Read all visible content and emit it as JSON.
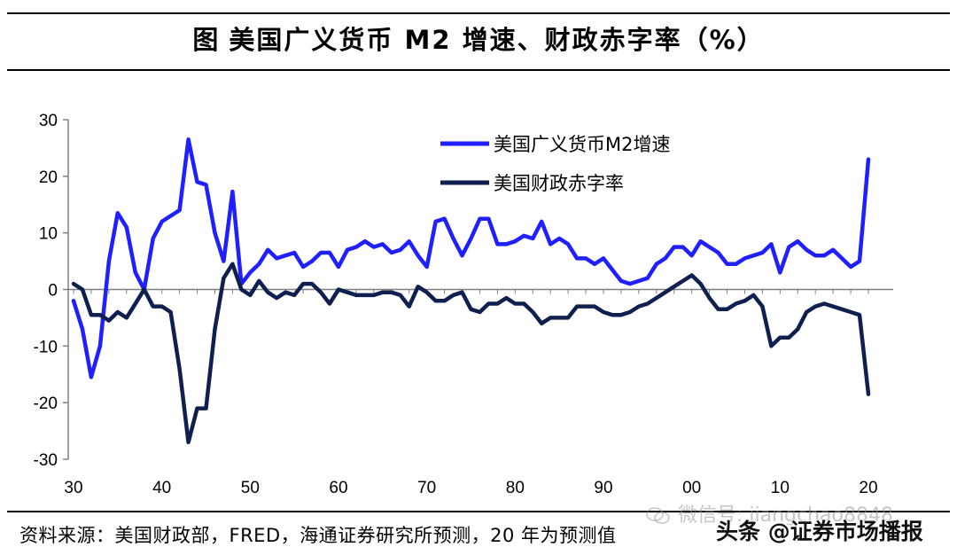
{
  "header": {
    "fig_label": "图",
    "title": "美国广义货币 M2 增速、财政赤字率（%）"
  },
  "footer": {
    "source": "资料来源：美国财政部，FRED，海通证券研究所预测，20 年为预测值"
  },
  "watermark": {
    "wechat": "微信号: jiangchao8848",
    "brand": "头条 @证券市场播报",
    "icon": "wechat-icon"
  },
  "colors": {
    "m2": "#1f1fff",
    "deficit": "#0f1f4f",
    "axis": "#7f7f7f"
  },
  "chart_data": {
    "type": "line",
    "title": "美国广义货币 M2 增速、财政赤字率（%）",
    "xlabel": "",
    "ylabel": "",
    "xlim": [
      1930,
      2020
    ],
    "ylim": [
      -30,
      30
    ],
    "x_tick_labels": [
      "30",
      "40",
      "50",
      "60",
      "70",
      "80",
      "90",
      "00",
      "10",
      "20"
    ],
    "x_ticks": [
      1930,
      1940,
      1950,
      1960,
      1970,
      1980,
      1990,
      2000,
      2010,
      2020
    ],
    "y_ticks": [
      30,
      20,
      10,
      0,
      -10,
      -20,
      -30
    ],
    "grid": false,
    "legend_position": "top-right",
    "series": [
      {
        "name": "美国广义货币M2增速",
        "color": "#1f1fff",
        "points": [
          [
            1930,
            -2
          ],
          [
            1931,
            -7
          ],
          [
            1932,
            -15.5
          ],
          [
            1933,
            -10
          ],
          [
            1934,
            5
          ],
          [
            1935,
            13.5
          ],
          [
            1936,
            11
          ],
          [
            1937,
            3
          ],
          [
            1938,
            0
          ],
          [
            1939,
            9
          ],
          [
            1940,
            12
          ],
          [
            1941,
            13
          ],
          [
            1942,
            14
          ],
          [
            1943,
            26.5
          ],
          [
            1944,
            19
          ],
          [
            1945,
            18.5
          ],
          [
            1946,
            10
          ],
          [
            1947,
            5
          ],
          [
            1948,
            17.3
          ],
          [
            1949,
            1
          ],
          [
            1950,
            3
          ],
          [
            1951,
            4.5
          ],
          [
            1952,
            7
          ],
          [
            1953,
            5.5
          ],
          [
            1954,
            6
          ],
          [
            1955,
            6.5
          ],
          [
            1956,
            4
          ],
          [
            1957,
            5
          ],
          [
            1958,
            6.5
          ],
          [
            1959,
            6.5
          ],
          [
            1960,
            4
          ],
          [
            1961,
            7
          ],
          [
            1962,
            7.5
          ],
          [
            1963,
            8.5
          ],
          [
            1964,
            7.5
          ],
          [
            1965,
            8
          ],
          [
            1966,
            6.5
          ],
          [
            1967,
            7
          ],
          [
            1968,
            8.5
          ],
          [
            1969,
            6
          ],
          [
            1970,
            4
          ],
          [
            1971,
            12
          ],
          [
            1972,
            12.5
          ],
          [
            1973,
            9
          ],
          [
            1974,
            6
          ],
          [
            1975,
            9
          ],
          [
            1976,
            12.5
          ],
          [
            1977,
            12.5
          ],
          [
            1978,
            8
          ],
          [
            1979,
            8
          ],
          [
            1980,
            8.5
          ],
          [
            1981,
            9.5
          ],
          [
            1982,
            9
          ],
          [
            1983,
            12
          ],
          [
            1984,
            8
          ],
          [
            1985,
            9
          ],
          [
            1986,
            8
          ],
          [
            1987,
            5.5
          ],
          [
            1988,
            5.5
          ],
          [
            1989,
            4.5
          ],
          [
            1990,
            5.5
          ],
          [
            1991,
            3.5
          ],
          [
            1992,
            1.5
          ],
          [
            1993,
            1
          ],
          [
            1994,
            1.5
          ],
          [
            1995,
            2
          ],
          [
            1996,
            4.5
          ],
          [
            1997,
            5.5
          ],
          [
            1998,
            7.5
          ],
          [
            1999,
            7.5
          ],
          [
            2000,
            6
          ],
          [
            2001,
            8.5
          ],
          [
            2002,
            7.5
          ],
          [
            2003,
            6.5
          ],
          [
            2004,
            4.5
          ],
          [
            2005,
            4.5
          ],
          [
            2006,
            5.5
          ],
          [
            2007,
            6
          ],
          [
            2008,
            6.5
          ],
          [
            2009,
            8
          ],
          [
            2010,
            3
          ],
          [
            2011,
            7.5
          ],
          [
            2012,
            8.5
          ],
          [
            2013,
            7
          ],
          [
            2014,
            6
          ],
          [
            2015,
            6
          ],
          [
            2016,
            7
          ],
          [
            2017,
            5.5
          ],
          [
            2018,
            4
          ],
          [
            2019,
            5
          ],
          [
            2020,
            23
          ]
        ]
      },
      {
        "name": "美国财政赤字率",
        "color": "#0f1f4f",
        "points": [
          [
            1930,
            1
          ],
          [
            1931,
            0
          ],
          [
            1932,
            -4.5
          ],
          [
            1933,
            -4.5
          ],
          [
            1934,
            -5.5
          ],
          [
            1935,
            -4
          ],
          [
            1936,
            -5
          ],
          [
            1937,
            -2.5
          ],
          [
            1938,
            0
          ],
          [
            1939,
            -3
          ],
          [
            1940,
            -3
          ],
          [
            1941,
            -4
          ],
          [
            1942,
            -14
          ],
          [
            1943,
            -27
          ],
          [
            1944,
            -21
          ],
          [
            1945,
            -21
          ],
          [
            1946,
            -7
          ],
          [
            1947,
            2
          ],
          [
            1948,
            4.5
          ],
          [
            1949,
            0
          ],
          [
            1950,
            -1
          ],
          [
            1951,
            1.5
          ],
          [
            1952,
            -0.5
          ],
          [
            1953,
            -1.5
          ],
          [
            1954,
            -0.5
          ],
          [
            1955,
            -1
          ],
          [
            1956,
            1
          ],
          [
            1957,
            1
          ],
          [
            1958,
            -0.5
          ],
          [
            1959,
            -2.5
          ],
          [
            1960,
            0
          ],
          [
            1961,
            -0.5
          ],
          [
            1962,
            -1
          ],
          [
            1963,
            -1
          ],
          [
            1964,
            -1
          ],
          [
            1965,
            -0.5
          ],
          [
            1966,
            -0.5
          ],
          [
            1967,
            -1
          ],
          [
            1968,
            -3
          ],
          [
            1969,
            0.5
          ],
          [
            1970,
            -0.5
          ],
          [
            1971,
            -2
          ],
          [
            1972,
            -2
          ],
          [
            1973,
            -1
          ],
          [
            1974,
            -0.5
          ],
          [
            1975,
            -3.5
          ],
          [
            1976,
            -4
          ],
          [
            1977,
            -2.5
          ],
          [
            1978,
            -2.5
          ],
          [
            1979,
            -1.5
          ],
          [
            1980,
            -2.5
          ],
          [
            1981,
            -2.5
          ],
          [
            1982,
            -4
          ],
          [
            1983,
            -6
          ],
          [
            1984,
            -5
          ],
          [
            1985,
            -5
          ],
          [
            1986,
            -5
          ],
          [
            1987,
            -3
          ],
          [
            1988,
            -3
          ],
          [
            1989,
            -3
          ],
          [
            1990,
            -4
          ],
          [
            1991,
            -4.5
          ],
          [
            1992,
            -4.5
          ],
          [
            1993,
            -4
          ],
          [
            1994,
            -3
          ],
          [
            1995,
            -2.5
          ],
          [
            1996,
            -1.5
          ],
          [
            1997,
            -0.5
          ],
          [
            1998,
            0.5
          ],
          [
            1999,
            1.5
          ],
          [
            2000,
            2.5
          ],
          [
            2001,
            1
          ],
          [
            2002,
            -1.5
          ],
          [
            2003,
            -3.5
          ],
          [
            2004,
            -3.5
          ],
          [
            2005,
            -2.5
          ],
          [
            2006,
            -2
          ],
          [
            2007,
            -1
          ],
          [
            2008,
            -3
          ],
          [
            2009,
            -10
          ],
          [
            2010,
            -8.5
          ],
          [
            2011,
            -8.5
          ],
          [
            2012,
            -7
          ],
          [
            2013,
            -4
          ],
          [
            2014,
            -3
          ],
          [
            2015,
            -2.5
          ],
          [
            2016,
            -3
          ],
          [
            2017,
            -3.5
          ],
          [
            2018,
            -4
          ],
          [
            2019,
            -4.5
          ],
          [
            2020,
            -18.5
          ]
        ]
      }
    ]
  }
}
